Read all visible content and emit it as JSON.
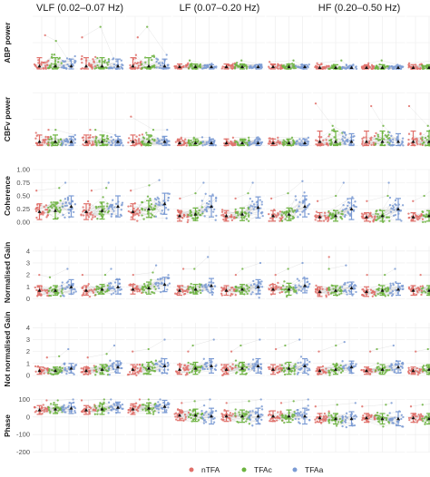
{
  "chart_data": {
    "type": "scatter",
    "title": "",
    "xlabel": "",
    "bands": [
      {
        "label": "VLF (0.02–0.07 Hz)"
      },
      {
        "label": "LF (0.07–0.20 Hz)"
      },
      {
        "label": "HF (0.20–0.50 Hz)"
      }
    ],
    "legend": {
      "position": "bottom",
      "entries": [
        "nTFA",
        "TFAc",
        "TFAa"
      ]
    },
    "colors": {
      "nTFA": "#E0706A",
      "TFAc": "#6CB33F",
      "TFAa": "#7B9BD4"
    },
    "grid": true,
    "rows": [
      {
        "label": "ABP power",
        "ylim": [
          0,
          75
        ],
        "ticks": [],
        "tick_labels": [],
        "groups": [
          [
            {
              "m": 4,
              "sd": 12,
              "max": 48
            },
            {
              "m": 4,
              "sd": 12,
              "max": 40
            },
            {
              "m": 4,
              "sd": 10,
              "max": 15
            }
          ],
          [
            {
              "m": 4,
              "sd": 12,
              "max": 45
            },
            {
              "m": 4,
              "sd": 12,
              "max": 60
            },
            {
              "m": 4,
              "sd": 10,
              "max": 15
            }
          ],
          [
            {
              "m": 4,
              "sd": 12,
              "max": 45
            },
            {
              "m": 4,
              "sd": 12,
              "max": 60
            },
            {
              "m": 4,
              "sd": 10,
              "max": 20
            }
          ],
          [
            {
              "m": 3,
              "sd": 4,
              "max": 8
            },
            {
              "m": 3,
              "sd": 4,
              "max": 12
            },
            {
              "m": 3,
              "sd": 3,
              "max": 6
            }
          ],
          [
            {
              "m": 3,
              "sd": 4,
              "max": 8
            },
            {
              "m": 3,
              "sd": 4,
              "max": 12
            },
            {
              "m": 3,
              "sd": 3,
              "max": 6
            }
          ],
          [
            {
              "m": 3,
              "sd": 4,
              "max": 10
            },
            {
              "m": 3,
              "sd": 4,
              "max": 12
            },
            {
              "m": 3,
              "sd": 3,
              "max": 6
            }
          ],
          [
            {
              "m": 2,
              "sd": 4,
              "max": 8
            },
            {
              "m": 2,
              "sd": 4,
              "max": 12
            },
            {
              "m": 2,
              "sd": 3,
              "max": 6
            }
          ],
          [
            {
              "m": 2,
              "sd": 4,
              "max": 8
            },
            {
              "m": 2,
              "sd": 4,
              "max": 12
            },
            {
              "m": 2,
              "sd": 3,
              "max": 6
            }
          ],
          [
            {
              "m": 2,
              "sd": 4,
              "max": 8
            },
            {
              "m": 2,
              "sd": 4,
              "max": 12
            },
            {
              "m": 2,
              "sd": 3,
              "max": 6
            }
          ]
        ]
      },
      {
        "label": "CBFv power",
        "ylim": [
          0,
          40
        ],
        "ticks": [],
        "tick_labels": [],
        "groups": [
          [
            {
              "m": 3,
              "sd": 5,
              "max": 12
            },
            {
              "m": 3,
              "sd": 5,
              "max": 12
            },
            {
              "m": 3,
              "sd": 4,
              "max": 8
            }
          ],
          [
            {
              "m": 3,
              "sd": 5,
              "max": 12
            },
            {
              "m": 3,
              "sd": 5,
              "max": 12
            },
            {
              "m": 3,
              "sd": 4,
              "max": 8
            }
          ],
          [
            {
              "m": 3,
              "sd": 5,
              "max": 22
            },
            {
              "m": 3,
              "sd": 5,
              "max": 12
            },
            {
              "m": 3,
              "sd": 4,
              "max": 12
            }
          ],
          [
            {
              "m": 2,
              "sd": 3,
              "max": 6
            },
            {
              "m": 2,
              "sd": 3,
              "max": 6
            },
            {
              "m": 2,
              "sd": 3,
              "max": 6
            }
          ],
          [
            {
              "m": 2,
              "sd": 3,
              "max": 6
            },
            {
              "m": 2,
              "sd": 3,
              "max": 6
            },
            {
              "m": 2,
              "sd": 3,
              "max": 6
            }
          ],
          [
            {
              "m": 2,
              "sd": 3,
              "max": 6
            },
            {
              "m": 2,
              "sd": 3,
              "max": 6
            },
            {
              "m": 2,
              "sd": 3,
              "max": 6
            }
          ],
          [
            {
              "m": 3,
              "sd": 8,
              "max": 32
            },
            {
              "m": 3,
              "sd": 8,
              "max": 15
            },
            {
              "m": 3,
              "sd": 6,
              "max": 10
            }
          ],
          [
            {
              "m": 3,
              "sd": 8,
              "max": 30
            },
            {
              "m": 3,
              "sd": 8,
              "max": 15
            },
            {
              "m": 3,
              "sd": 6,
              "max": 10
            }
          ],
          [
            {
              "m": 3,
              "sd": 8,
              "max": 30
            },
            {
              "m": 3,
              "sd": 8,
              "max": 15
            },
            {
              "m": 3,
              "sd": 6,
              "max": 10
            }
          ]
        ]
      },
      {
        "label": "Coherence",
        "ylim": [
          0,
          1
        ],
        "ticks": [
          0,
          0.25,
          0.5,
          0.75,
          1
        ],
        "tick_labels": [
          "0.00",
          "0.25",
          "0.50",
          "0.75",
          "1.00"
        ],
        "groups": [
          [
            {
              "m": 0.2,
              "sd": 0.15,
              "max": 0.6
            },
            {
              "m": 0.22,
              "sd": 0.16,
              "max": 0.65
            },
            {
              "m": 0.3,
              "sd": 0.2,
              "max": 0.75
            }
          ],
          [
            {
              "m": 0.2,
              "sd": 0.15,
              "max": 0.6
            },
            {
              "m": 0.22,
              "sd": 0.16,
              "max": 0.65
            },
            {
              "m": 0.3,
              "sd": 0.2,
              "max": 0.75
            }
          ],
          [
            {
              "m": 0.2,
              "sd": 0.15,
              "max": 0.6
            },
            {
              "m": 0.25,
              "sd": 0.16,
              "max": 0.7
            },
            {
              "m": 0.35,
              "sd": 0.2,
              "max": 0.8
            }
          ],
          [
            {
              "m": 0.12,
              "sd": 0.1,
              "max": 0.45
            },
            {
              "m": 0.15,
              "sd": 0.12,
              "max": 0.55
            },
            {
              "m": 0.3,
              "sd": 0.2,
              "max": 0.75
            }
          ],
          [
            {
              "m": 0.12,
              "sd": 0.1,
              "max": 0.45
            },
            {
              "m": 0.15,
              "sd": 0.12,
              "max": 0.55
            },
            {
              "m": 0.28,
              "sd": 0.2,
              "max": 0.75
            }
          ],
          [
            {
              "m": 0.12,
              "sd": 0.1,
              "max": 0.45
            },
            {
              "m": 0.15,
              "sd": 0.12,
              "max": 0.55
            },
            {
              "m": 0.3,
              "sd": 0.2,
              "max": 0.78
            }
          ],
          [
            {
              "m": 0.1,
              "sd": 0.08,
              "max": 0.4
            },
            {
              "m": 0.12,
              "sd": 0.1,
              "max": 0.5
            },
            {
              "m": 0.25,
              "sd": 0.2,
              "max": 0.75
            }
          ],
          [
            {
              "m": 0.1,
              "sd": 0.08,
              "max": 0.4
            },
            {
              "m": 0.12,
              "sd": 0.1,
              "max": 0.5
            },
            {
              "m": 0.25,
              "sd": 0.2,
              "max": 0.75
            }
          ],
          [
            {
              "m": 0.1,
              "sd": 0.08,
              "max": 0.4
            },
            {
              "m": 0.12,
              "sd": 0.1,
              "max": 0.5
            },
            {
              "m": 0.25,
              "sd": 0.2,
              "max": 0.75
            }
          ]
        ]
      },
      {
        "label": "Normalised Gain",
        "ylim": [
          0,
          4.4
        ],
        "ticks": [
          0,
          1,
          2,
          3,
          4
        ],
        "tick_labels": [
          "0",
          "1",
          "2",
          "3",
          "4"
        ],
        "groups": [
          [
            {
              "m": 0.7,
              "sd": 0.4,
              "max": 2.0
            },
            {
              "m": 0.7,
              "sd": 0.4,
              "max": 1.8
            },
            {
              "m": 1.0,
              "sd": 0.6,
              "max": 2.5
            }
          ],
          [
            {
              "m": 0.7,
              "sd": 0.4,
              "max": 2.0
            },
            {
              "m": 0.8,
              "sd": 0.4,
              "max": 2.0
            },
            {
              "m": 1.0,
              "sd": 0.6,
              "max": 2.5
            }
          ],
          [
            {
              "m": 0.8,
              "sd": 0.4,
              "max": 2.0
            },
            {
              "m": 0.9,
              "sd": 0.5,
              "max": 2.2
            },
            {
              "m": 1.2,
              "sd": 0.6,
              "max": 2.8
            }
          ],
          [
            {
              "m": 0.7,
              "sd": 0.4,
              "max": 2.5
            },
            {
              "m": 0.8,
              "sd": 0.4,
              "max": 2.5
            },
            {
              "m": 1.1,
              "sd": 0.6,
              "max": 3.5
            }
          ],
          [
            {
              "m": 0.7,
              "sd": 0.4,
              "max": 2.0
            },
            {
              "m": 0.8,
              "sd": 0.4,
              "max": 2.5
            },
            {
              "m": 1.0,
              "sd": 0.6,
              "max": 3.0
            }
          ],
          [
            {
              "m": 0.8,
              "sd": 0.4,
              "max": 2.0
            },
            {
              "m": 0.8,
              "sd": 0.5,
              "max": 2.5
            },
            {
              "m": 1.1,
              "sd": 0.6,
              "max": 3.0
            }
          ],
          [
            {
              "m": 0.6,
              "sd": 0.4,
              "max": 3.5
            },
            {
              "m": 0.7,
              "sd": 0.4,
              "max": 2.5
            },
            {
              "m": 0.9,
              "sd": 0.5,
              "max": 2.8
            }
          ],
          [
            {
              "m": 0.6,
              "sd": 0.4,
              "max": 2.0
            },
            {
              "m": 0.7,
              "sd": 0.4,
              "max": 2.0
            },
            {
              "m": 0.8,
              "sd": 0.5,
              "max": 2.5
            }
          ],
          [
            {
              "m": 0.7,
              "sd": 0.4,
              "max": 2.0
            },
            {
              "m": 0.7,
              "sd": 0.4,
              "max": 2.0
            },
            {
              "m": 0.9,
              "sd": 0.5,
              "max": 2.5
            }
          ]
        ]
      },
      {
        "label": "Not normalised Gain",
        "ylim": [
          0,
          4.4
        ],
        "ticks": [
          0,
          1,
          2,
          3,
          4
        ],
        "tick_labels": [
          "0",
          "1",
          "2",
          "3",
          "4"
        ],
        "groups": [
          [
            {
              "m": 0.4,
              "sd": 0.3,
              "max": 1.5
            },
            {
              "m": 0.4,
              "sd": 0.3,
              "max": 1.6
            },
            {
              "m": 0.6,
              "sd": 0.4,
              "max": 2.2
            }
          ],
          [
            {
              "m": 0.4,
              "sd": 0.3,
              "max": 1.5
            },
            {
              "m": 0.5,
              "sd": 0.4,
              "max": 1.8
            },
            {
              "m": 0.7,
              "sd": 0.5,
              "max": 2.5
            }
          ],
          [
            {
              "m": 0.5,
              "sd": 0.4,
              "max": 2.0
            },
            {
              "m": 0.6,
              "sd": 0.5,
              "max": 2.2
            },
            {
              "m": 0.8,
              "sd": 0.6,
              "max": 3.0
            }
          ],
          [
            {
              "m": 0.5,
              "sd": 0.4,
              "max": 2.0
            },
            {
              "m": 0.6,
              "sd": 0.5,
              "max": 2.5
            },
            {
              "m": 0.8,
              "sd": 0.6,
              "max": 3.0
            }
          ],
          [
            {
              "m": 0.5,
              "sd": 0.4,
              "max": 2.0
            },
            {
              "m": 0.6,
              "sd": 0.5,
              "max": 2.5
            },
            {
              "m": 0.8,
              "sd": 0.6,
              "max": 3.0
            }
          ],
          [
            {
              "m": 0.5,
              "sd": 0.4,
              "max": 2.2
            },
            {
              "m": 0.6,
              "sd": 0.5,
              "max": 2.5
            },
            {
              "m": 0.8,
              "sd": 0.6,
              "max": 3.0
            }
          ],
          [
            {
              "m": 0.4,
              "sd": 0.3,
              "max": 2.0
            },
            {
              "m": 0.5,
              "sd": 0.4,
              "max": 2.5
            },
            {
              "m": 0.7,
              "sd": 0.5,
              "max": 2.8
            }
          ],
          [
            {
              "m": 0.4,
              "sd": 0.3,
              "max": 2.0
            },
            {
              "m": 0.5,
              "sd": 0.4,
              "max": 2.2
            },
            {
              "m": 0.7,
              "sd": 0.5,
              "max": 2.5
            }
          ],
          [
            {
              "m": 0.4,
              "sd": 0.3,
              "max": 2.0
            },
            {
              "m": 0.5,
              "sd": 0.4,
              "max": 2.2
            },
            {
              "m": 0.7,
              "sd": 0.5,
              "max": 2.5
            }
          ]
        ]
      },
      {
        "label": "Phase",
        "ylim": [
          -200,
          100
        ],
        "ticks": [
          -200,
          -100,
          0,
          100
        ],
        "tick_labels": [
          "-200",
          "-100",
          "0",
          "100"
        ],
        "groups": [
          [
            {
              "m": 40,
              "sd": 25,
              "max": 95
            },
            {
              "m": 45,
              "sd": 25,
              "max": 95
            },
            {
              "m": 50,
              "sd": 30,
              "max": 100
            }
          ],
          [
            {
              "m": 40,
              "sd": 25,
              "max": 95
            },
            {
              "m": 45,
              "sd": 30,
              "max": 100
            },
            {
              "m": 55,
              "sd": 30,
              "max": 100
            }
          ],
          [
            {
              "m": 45,
              "sd": 30,
              "max": 100
            },
            {
              "m": 50,
              "sd": 30,
              "max": 100
            },
            {
              "m": 60,
              "sd": 35,
              "max": 100
            }
          ],
          [
            {
              "m": 10,
              "sd": 30,
              "max": 80
            },
            {
              "m": 10,
              "sd": 35,
              "max": 90
            },
            {
              "m": 5,
              "sd": 45,
              "max": 100
            }
          ],
          [
            {
              "m": 5,
              "sd": 30,
              "max": 80
            },
            {
              "m": 5,
              "sd": 35,
              "max": 90
            },
            {
              "m": 5,
              "sd": 45,
              "max": 100
            }
          ],
          [
            {
              "m": 5,
              "sd": 30,
              "max": 80
            },
            {
              "m": 5,
              "sd": 35,
              "max": 90
            },
            {
              "m": 5,
              "sd": 45,
              "max": 100
            }
          ],
          [
            {
              "m": -5,
              "sd": 25,
              "max": 60
            },
            {
              "m": -10,
              "sd": 30,
              "max": 70
            },
            {
              "m": -10,
              "sd": 40,
              "max": 80
            }
          ],
          [
            {
              "m": -5,
              "sd": 25,
              "max": 60
            },
            {
              "m": -10,
              "sd": 30,
              "max": 70
            },
            {
              "m": -10,
              "sd": 40,
              "max": 80
            }
          ],
          [
            {
              "m": -5,
              "sd": 25,
              "max": 60
            },
            {
              "m": -10,
              "sd": 30,
              "max": 70
            },
            {
              "m": -10,
              "sd": 40,
              "max": 80
            }
          ]
        ]
      }
    ]
  }
}
